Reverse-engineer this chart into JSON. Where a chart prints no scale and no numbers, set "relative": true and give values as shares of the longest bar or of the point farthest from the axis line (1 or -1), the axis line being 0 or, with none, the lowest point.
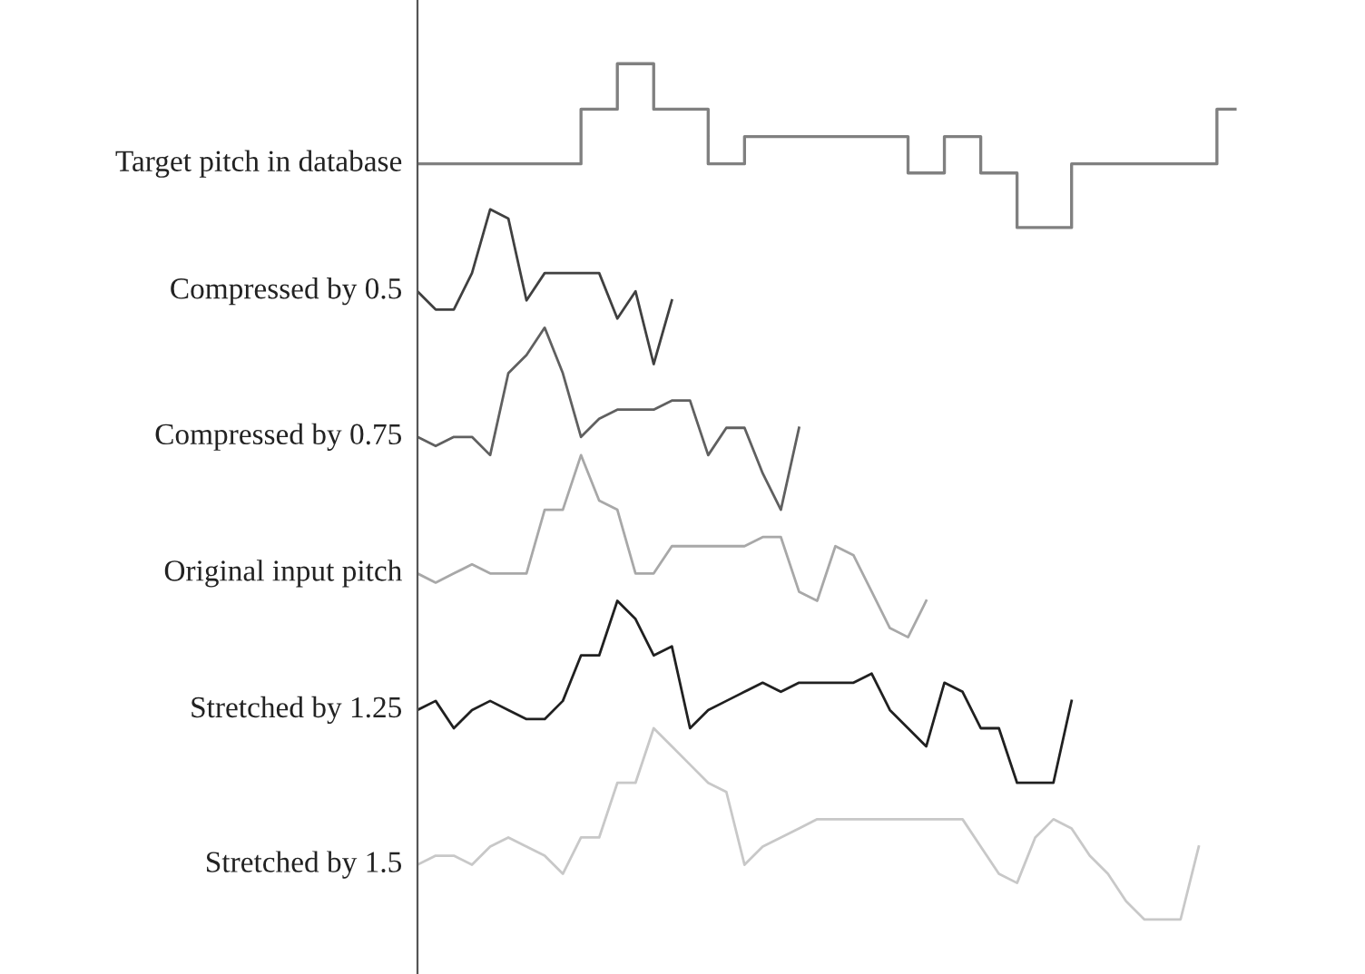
{
  "chart_data": {
    "type": "line",
    "relative": true,
    "legend": false,
    "marker": "none",
    "line_style": "solid",
    "categories": [
      null,
      null,
      null,
      null,
      null,
      null,
      null,
      null,
      null,
      null,
      null,
      null,
      null,
      null,
      null,
      null,
      null,
      null,
      null,
      null,
      null,
      null,
      null,
      null,
      null,
      null,
      null,
      null,
      null,
      null,
      null,
      null,
      null,
      null,
      null,
      null,
      null,
      null,
      null,
      null,
      null,
      null,
      null,
      null,
      null,
      null,
      null
    ],
    "series": [
      {
        "name": "Target pitch in database",
        "type": "step",
        "color": "#808080",
        "values": [
          0.89,
          0.89,
          0.89,
          0.89,
          0.89,
          0.89,
          0.89,
          0.89,
          0.89,
          0.95,
          0.95,
          1.0,
          1.0,
          0.95,
          0.95,
          0.95,
          0.89,
          0.89,
          0.92,
          0.92,
          0.92,
          0.92,
          0.92,
          0.92,
          0.92,
          0.92,
          0.92,
          0.88,
          0.88,
          0.92,
          0.92,
          0.88,
          0.88,
          0.82,
          0.82,
          0.82,
          0.89,
          0.89,
          0.89,
          0.89,
          0.89,
          0.89,
          0.89,
          0.89,
          0.95,
          0.95,
          null
        ]
      },
      {
        "name": "Compressed by 0.5",
        "color": "#404040",
        "values": [
          0.75,
          0.73,
          0.73,
          0.77,
          0.84,
          0.83,
          0.74,
          0.77,
          0.77,
          0.77,
          0.77,
          0.72,
          0.75,
          0.67,
          0.74,
          null,
          null,
          null,
          null,
          null,
          null,
          null,
          null,
          null,
          null,
          null,
          null,
          null,
          null,
          null,
          null,
          null,
          null,
          null,
          null,
          null,
          null,
          null,
          null,
          null,
          null,
          null,
          null,
          null,
          null,
          null,
          null
        ]
      },
      {
        "name": "Compressed by 0.75",
        "color": "#606060",
        "values": [
          0.59,
          0.58,
          0.59,
          0.59,
          0.57,
          0.66,
          0.68,
          0.71,
          0.66,
          0.59,
          0.61,
          0.62,
          0.62,
          0.62,
          0.63,
          0.63,
          0.57,
          0.6,
          0.6,
          0.55,
          0.51,
          0.6,
          null,
          null,
          null,
          null,
          null,
          null,
          null,
          null,
          null,
          null,
          null,
          null,
          null,
          null,
          null,
          null,
          null,
          null,
          null,
          null,
          null,
          null,
          null,
          null,
          null
        ]
      },
      {
        "name": "Original input pitch",
        "color": "#a8a8a8",
        "values": [
          0.44,
          0.43,
          0.44,
          0.45,
          0.44,
          0.44,
          0.44,
          0.51,
          0.51,
          0.57,
          0.52,
          0.51,
          0.44,
          0.44,
          0.47,
          0.47,
          0.47,
          0.47,
          0.47,
          0.48,
          0.48,
          0.42,
          0.41,
          0.47,
          0.46,
          0.42,
          0.38,
          0.37,
          0.41,
          null,
          null,
          null,
          null,
          null,
          null,
          null,
          null,
          null,
          null,
          null,
          null,
          null,
          null,
          null,
          null,
          null,
          null
        ]
      },
      {
        "name": "Stretched by 1.25",
        "color": "#202020",
        "values": [
          0.29,
          0.3,
          0.27,
          0.29,
          0.3,
          0.29,
          0.28,
          0.28,
          0.3,
          0.35,
          0.35,
          0.41,
          0.39,
          0.35,
          0.36,
          0.27,
          0.29,
          0.3,
          0.31,
          0.32,
          0.31,
          0.32,
          0.32,
          0.32,
          0.32,
          0.33,
          0.29,
          0.27,
          0.25,
          0.32,
          0.31,
          0.27,
          0.27,
          0.21,
          0.21,
          0.21,
          0.3,
          null,
          null,
          null,
          null,
          null,
          null,
          null,
          null,
          null,
          null
        ]
      },
      {
        "name": "Stretched by 1.5",
        "color": "#c8c8c8",
        "values": [
          0.12,
          0.13,
          0.13,
          0.12,
          0.14,
          0.15,
          0.14,
          0.13,
          0.11,
          0.15,
          0.15,
          0.21,
          0.21,
          0.27,
          0.25,
          0.23,
          0.21,
          0.2,
          0.12,
          0.14,
          0.15,
          0.16,
          0.17,
          0.17,
          0.17,
          0.17,
          0.17,
          0.17,
          0.17,
          0.17,
          0.17,
          0.14,
          0.11,
          0.1,
          0.15,
          0.17,
          0.16,
          0.13,
          0.11,
          0.08,
          0.06,
          0.06,
          0.06,
          0.14,
          null,
          null,
          null
        ]
      }
    ]
  }
}
